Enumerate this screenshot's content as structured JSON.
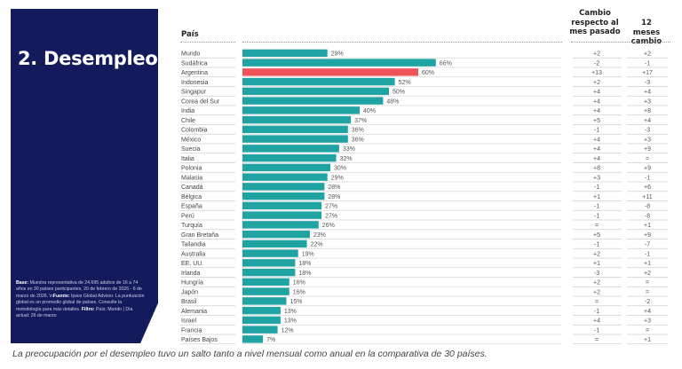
{
  "panel": {
    "title": "2. Desempleo",
    "note_base_label": "Base:",
    "note_base": " Muestra representativa de 24.695 adultos de 16 a 74 años en 30 países participantes, 20 de febrero de 2026 - 6 de marzo de 2026. \\n",
    "note_source_label": "Fuente:",
    "note_source": " Ipsos Global Advisor. La puntuación global es un promedio global de países. Consulte la metodología para más detalles. ",
    "note_filter_label": "Filtro:",
    "note_filter": " País: Mundo | Día actual: 26 de marzo"
  },
  "caption": "La preocupación por el desempleo tuvo un salto tanto a nivel mensual como anual en la comparativa de 30 países.",
  "colors": {
    "bar": "#1fa3a3",
    "highlight": "#f0525a",
    "panel": "#141b5c"
  },
  "chart_data": {
    "type": "bar",
    "orientation": "horizontal",
    "title": "2. Desempleo",
    "column_headers": {
      "country": "País",
      "month_change": "Cambio respecto al mes pasado",
      "year_change": "12 meses cambio"
    },
    "unit": "%",
    "xlim": [
      0,
      100
    ],
    "highlight": "Argentina",
    "categories": [
      "Mundo",
      "Sudáfrica",
      "Argentina",
      "Indonesia",
      "Singapur",
      "Corea del Sur",
      "India",
      "Chile",
      "Colombia",
      "México",
      "Suecia",
      "Italia",
      "Polonia",
      "Malasia",
      "Canadá",
      "Bélgica",
      "España",
      "Perú",
      "Turquía",
      "Gran Bretaña",
      "Tailandia",
      "Australia",
      "EE. UU.",
      "Irlanda",
      "Hungría",
      "Japón",
      "Brasil",
      "Alemania",
      "Israel",
      "Francia",
      "Países Bajos"
    ],
    "values": [
      29,
      66,
      60,
      52,
      50,
      48,
      40,
      37,
      36,
      36,
      33,
      32,
      30,
      29,
      28,
      28,
      27,
      27,
      26,
      23,
      22,
      19,
      18,
      18,
      16,
      16,
      15,
      13,
      13,
      12,
      7
    ],
    "month_change": [
      "+2",
      "-2",
      "+13",
      "+2",
      "+4",
      "+4",
      "+4",
      "+5",
      "-1",
      "+4",
      "+4",
      "+4",
      "+8",
      "+3",
      "-1",
      "+1",
      "-1",
      "-1",
      "=",
      "+5",
      "-1",
      "+2",
      "+1",
      "-3",
      "+2",
      "+2",
      "=",
      "-1",
      "+4",
      "-1",
      "="
    ],
    "year_change": [
      "+2",
      "-1",
      "+17",
      "-3",
      "+4",
      "+3",
      "+8",
      "+4",
      "-3",
      "+3",
      "+9",
      "=",
      "+9",
      "-1",
      "+6",
      "+11",
      "-8",
      "-8",
      "+1",
      "+9",
      "-7",
      "-1",
      "+1",
      "+2",
      "=",
      "=",
      "-2",
      "+4",
      "+3",
      "=",
      "+1"
    ]
  }
}
